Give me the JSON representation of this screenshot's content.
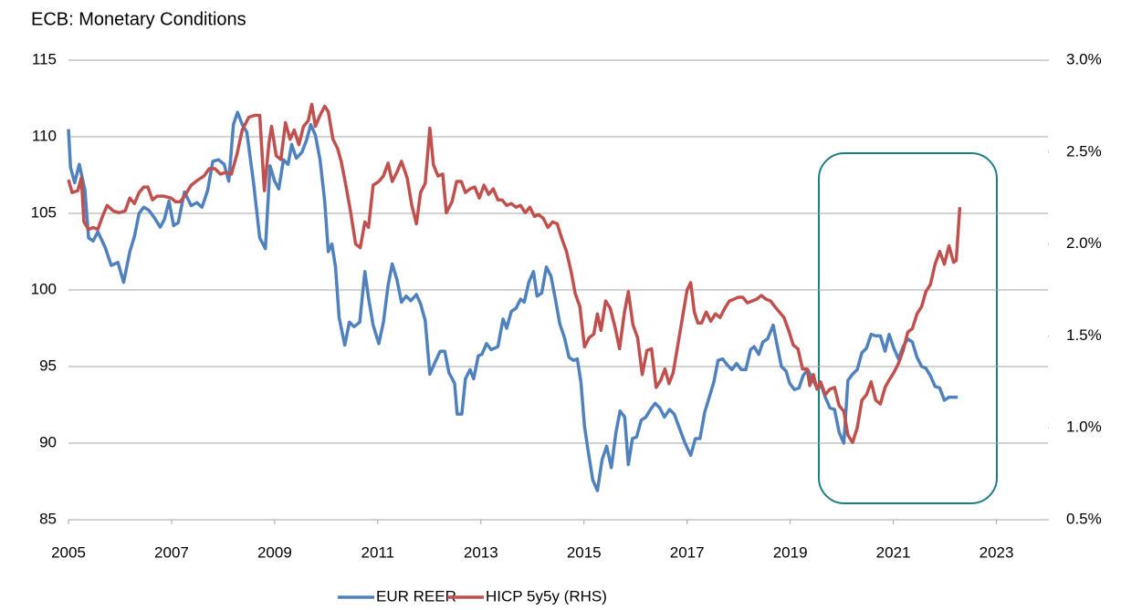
{
  "chart_data": {
    "type": "line",
    "title": "ECB: Monetary Conditions",
    "xlim": [
      2005,
      2024
    ],
    "xticks": [
      2005,
      2007,
      2009,
      2011,
      2013,
      2015,
      2017,
      2019,
      2021,
      2023
    ],
    "ylim": [
      85,
      115
    ],
    "yticks": [
      85,
      90,
      95,
      100,
      105,
      110,
      115
    ],
    "y2lim": [
      0.5,
      3.0
    ],
    "y2ticks": [
      {
        "value": 0.5,
        "label": "0.5%"
      },
      {
        "value": 1.0,
        "label": "1.0%"
      },
      {
        "value": 1.5,
        "label": "1.5%"
      },
      {
        "value": 2.0,
        "label": "2.0%"
      },
      {
        "value": 2.5,
        "label": "2.5%"
      },
      {
        "value": 3.0,
        "label": "3.0%"
      }
    ],
    "grid": true,
    "legend": "bottom",
    "series": [
      {
        "name": "EUR REER",
        "color": "#4f81bd",
        "x": [
          2005.0,
          2005.04,
          2005.12,
          2005.21,
          2005.32,
          2005.39,
          2005.48,
          2005.57,
          2005.71,
          2005.83,
          2005.96,
          2006.07,
          2006.19,
          2006.28,
          2006.37,
          2006.46,
          2006.56,
          2006.67,
          2006.78,
          2006.86,
          2006.95,
          2007.04,
          2007.13,
          2007.25,
          2007.38,
          2007.49,
          2007.59,
          2007.7,
          2007.8,
          2007.91,
          2008.02,
          2008.11,
          2008.2,
          2008.28,
          2008.37,
          2008.46,
          2008.59,
          2008.71,
          2008.82,
          2008.91,
          2009.0,
          2009.08,
          2009.17,
          2009.26,
          2009.33,
          2009.42,
          2009.53,
          2009.62,
          2009.7,
          2009.79,
          2009.88,
          2009.97,
          2010.04,
          2010.11,
          2010.18,
          2010.25,
          2010.36,
          2010.45,
          2010.54,
          2010.65,
          2010.75,
          2010.82,
          2010.91,
          2011.02,
          2011.11,
          2011.2,
          2011.28,
          2011.37,
          2011.46,
          2011.55,
          2011.64,
          2011.75,
          2011.83,
          2011.92,
          2012.01,
          2012.1,
          2012.21,
          2012.3,
          2012.38,
          2012.49,
          2012.54,
          2012.63,
          2012.7,
          2012.79,
          2012.86,
          2012.95,
          2013.02,
          2013.11,
          2013.2,
          2013.33,
          2013.43,
          2013.5,
          2013.59,
          2013.68,
          2013.77,
          2013.84,
          2013.93,
          2014.02,
          2014.09,
          2014.18,
          2014.27,
          2014.36,
          2014.44,
          2014.53,
          2014.62,
          2014.71,
          2014.8,
          2014.87,
          2014.94,
          2015.01,
          2015.08,
          2015.17,
          2015.26,
          2015.35,
          2015.44,
          2015.53,
          2015.62,
          2015.7,
          2015.79,
          2015.86,
          2015.94,
          2016.02,
          2016.11,
          2016.2,
          2016.29,
          2016.38,
          2016.47,
          2016.56,
          2016.66,
          2016.75,
          2016.86,
          2016.96,
          2017.07,
          2017.16,
          2017.25,
          2017.34,
          2017.43,
          2017.52,
          2017.6,
          2017.69,
          2017.78,
          2017.87,
          2017.96,
          2018.05,
          2018.14,
          2018.23,
          2018.3,
          2018.39,
          2018.47,
          2018.56,
          2018.67,
          2018.74,
          2018.83,
          2018.92,
          2018.99,
          2019.08,
          2019.17,
          2019.25,
          2019.34,
          2019.43,
          2019.52,
          2019.61,
          2019.68,
          2019.77,
          2019.86,
          2019.95,
          2020.04,
          2020.12,
          2020.21,
          2020.3,
          2020.39,
          2020.48,
          2020.57,
          2020.66,
          2020.75,
          2020.84,
          2020.92,
          2021.01,
          2021.1,
          2021.19,
          2021.28,
          2021.37,
          2021.46,
          2021.55,
          2021.63,
          2021.72,
          2021.81,
          2021.9,
          2021.99,
          2022.08,
          2022.17,
          2022.25
        ],
        "values": [
          110.5,
          108,
          107,
          108.2,
          106.5,
          103.4,
          103.2,
          103.8,
          102.8,
          101.6,
          101.8,
          100.5,
          102.5,
          103.5,
          105,
          105.4,
          105.2,
          104.7,
          104.1,
          104.6,
          105.8,
          104.2,
          104.4,
          106.4,
          105.5,
          105.7,
          105.4,
          106.5,
          108.4,
          108.5,
          108.2,
          107.1,
          110.8,
          111.6,
          110.8,
          110.3,
          107,
          103.4,
          102.7,
          108.1,
          107.1,
          106.6,
          108.5,
          108.2,
          109.5,
          108.6,
          109,
          109.8,
          110.8,
          110.1,
          108.5,
          105.8,
          102.5,
          103,
          101.5,
          98.2,
          96.4,
          97.9,
          97.6,
          97.9,
          101.2,
          99.5,
          97.7,
          96.5,
          97.9,
          100.3,
          101.7,
          100.7,
          99.2,
          99.6,
          99.3,
          99.7,
          99.1,
          98,
          94.5,
          95.2,
          96,
          96,
          94.6,
          93.9,
          91.9,
          91.9,
          94.2,
          94.8,
          94.2,
          95.7,
          95.8,
          96.5,
          96.1,
          96.3,
          98.1,
          97.5,
          98.6,
          98.8,
          99.4,
          99.2,
          100.5,
          101.2,
          99.6,
          99.8,
          101.5,
          100.9,
          99.5,
          97.8,
          96.9,
          95.6,
          95.4,
          95.5,
          94,
          91.1,
          89.5,
          87.6,
          86.9,
          88.9,
          89.8,
          88.4,
          90.7,
          92.1,
          91.7,
          88.6,
          90.3,
          90.4,
          91.5,
          91.7,
          92.2,
          92.6,
          92.3,
          91.7,
          92.2,
          91.9,
          90.9,
          90,
          89.2,
          90.3,
          90.3,
          92,
          93,
          94,
          95.4,
          95.5,
          95.1,
          94.8,
          95.2,
          94.8,
          94.8,
          96.1,
          96.3,
          95.8,
          96.6,
          96.8,
          97.7,
          96.5,
          95,
          94.7,
          93.9,
          93.5,
          93.6,
          94.4,
          94.8,
          94.2,
          93.6,
          93.7,
          93,
          92.3,
          92.2,
          90.7,
          90,
          94.1,
          94.5,
          94.8,
          95.9,
          96.2,
          97.1,
          97,
          97,
          96,
          97.1,
          96.2,
          95.5,
          96.3,
          96.8,
          96.6,
          95.6,
          95,
          94.9,
          94.4,
          93.7,
          93.6,
          92.8,
          93,
          93,
          93
        ]
      },
      {
        "name": "HICP 5y5y (RHS)",
        "color": "#c0504d",
        "axis": "y2",
        "x": [
          2005.0,
          2005.07,
          2005.18,
          2005.25,
          2005.3,
          2005.39,
          2005.48,
          2005.57,
          2005.66,
          2005.75,
          2005.87,
          2005.98,
          2006.1,
          2006.19,
          2006.28,
          2006.37,
          2006.46,
          2006.54,
          2006.63,
          2006.72,
          2006.85,
          2006.99,
          2007.08,
          2007.17,
          2007.25,
          2007.38,
          2007.52,
          2007.63,
          2007.73,
          2007.84,
          2007.95,
          2008.05,
          2008.16,
          2008.27,
          2008.37,
          2008.5,
          2008.62,
          2008.71,
          2008.8,
          2008.89,
          2008.94,
          2009.03,
          2009.12,
          2009.21,
          2009.3,
          2009.38,
          2009.47,
          2009.56,
          2009.65,
          2009.72,
          2009.79,
          2009.88,
          2009.97,
          2010.04,
          2010.13,
          2010.22,
          2010.29,
          2010.38,
          2010.47,
          2010.57,
          2010.66,
          2010.75,
          2010.82,
          2010.91,
          2011.02,
          2011.11,
          2011.2,
          2011.28,
          2011.37,
          2011.46,
          2011.57,
          2011.66,
          2011.75,
          2011.83,
          2011.92,
          2012.01,
          2012.08,
          2012.17,
          2012.26,
          2012.33,
          2012.44,
          2012.53,
          2012.62,
          2012.7,
          2012.79,
          2012.88,
          2012.97,
          2013.06,
          2013.15,
          2013.24,
          2013.33,
          2013.41,
          2013.5,
          2013.59,
          2013.68,
          2013.77,
          2013.86,
          2013.95,
          2014.04,
          2014.12,
          2014.21,
          2014.3,
          2014.39,
          2014.48,
          2014.57,
          2014.66,
          2014.75,
          2014.83,
          2014.92,
          2015.01,
          2015.1,
          2015.19,
          2015.26,
          2015.33,
          2015.42,
          2015.51,
          2015.6,
          2015.69,
          2015.78,
          2015.86,
          2015.95,
          2016.04,
          2016.13,
          2016.22,
          2016.31,
          2016.4,
          2016.49,
          2016.57,
          2016.65,
          2016.73,
          2016.82,
          2016.91,
          2017.0,
          2017.07,
          2017.14,
          2017.21,
          2017.28,
          2017.37,
          2017.46,
          2017.55,
          2017.64,
          2017.73,
          2017.82,
          2017.91,
          2017.99,
          2018.08,
          2018.17,
          2018.26,
          2018.35,
          2018.44,
          2018.53,
          2018.62,
          2018.7,
          2018.79,
          2018.88,
          2018.97,
          2019.06,
          2019.15,
          2019.24,
          2019.33,
          2019.38,
          2019.45,
          2019.52,
          2019.59,
          2019.68,
          2019.77,
          2019.86,
          2019.95,
          2020.04,
          2020.12,
          2020.21,
          2020.3,
          2020.39,
          2020.48,
          2020.57,
          2020.66,
          2020.75,
          2020.84,
          2020.92,
          2021.01,
          2021.1,
          2021.19,
          2021.28,
          2021.37,
          2021.46,
          2021.55,
          2021.63,
          2021.72,
          2021.81,
          2021.9,
          2021.99,
          2022.08,
          2022.17,
          2022.22,
          2022.29
        ],
        "values": [
          2.35,
          2.28,
          2.29,
          2.36,
          2.12,
          2.08,
          2.09,
          2.08,
          2.15,
          2.21,
          2.18,
          2.17,
          2.18,
          2.25,
          2.22,
          2.28,
          2.31,
          2.31,
          2.24,
          2.26,
          2.26,
          2.25,
          2.23,
          2.23,
          2.26,
          2.32,
          2.35,
          2.37,
          2.41,
          2.41,
          2.38,
          2.39,
          2.38,
          2.49,
          2.62,
          2.69,
          2.7,
          2.7,
          2.29,
          2.55,
          2.64,
          2.48,
          2.46,
          2.66,
          2.57,
          2.62,
          2.54,
          2.64,
          2.67,
          2.76,
          2.64,
          2.7,
          2.75,
          2.72,
          2.57,
          2.52,
          2.45,
          2.32,
          2.18,
          2.0,
          1.98,
          2.12,
          2.09,
          2.32,
          2.34,
          2.37,
          2.44,
          2.34,
          2.39,
          2.45,
          2.36,
          2.21,
          2.11,
          2.28,
          2.33,
          2.63,
          2.43,
          2.37,
          2.38,
          2.17,
          2.23,
          2.34,
          2.34,
          2.28,
          2.3,
          2.31,
          2.25,
          2.32,
          2.27,
          2.3,
          2.24,
          2.24,
          2.21,
          2.22,
          2.2,
          2.21,
          2.17,
          2.2,
          2.15,
          2.16,
          2.14,
          2.09,
          2.12,
          2.11,
          2.03,
          1.96,
          1.85,
          1.73,
          1.66,
          1.44,
          1.49,
          1.51,
          1.62,
          1.53,
          1.69,
          1.65,
          1.55,
          1.43,
          1.62,
          1.74,
          1.56,
          1.49,
          1.29,
          1.42,
          1.43,
          1.22,
          1.26,
          1.32,
          1.24,
          1.3,
          1.45,
          1.6,
          1.75,
          1.79,
          1.63,
          1.57,
          1.57,
          1.63,
          1.58,
          1.62,
          1.6,
          1.65,
          1.69,
          1.7,
          1.71,
          1.71,
          1.68,
          1.69,
          1.7,
          1.72,
          1.7,
          1.69,
          1.66,
          1.63,
          1.6,
          1.53,
          1.45,
          1.43,
          1.32,
          1.32,
          1.23,
          1.29,
          1.21,
          1.25,
          1.18,
          1.21,
          1.22,
          1.12,
          1.09,
          0.96,
          0.92,
          1.0,
          1.15,
          1.18,
          1.25,
          1.15,
          1.13,
          1.22,
          1.26,
          1.3,
          1.35,
          1.42,
          1.52,
          1.54,
          1.62,
          1.66,
          1.74,
          1.78,
          1.89,
          1.96,
          1.89,
          1.99,
          1.9,
          1.91,
          2.2
        ]
      }
    ]
  }
}
